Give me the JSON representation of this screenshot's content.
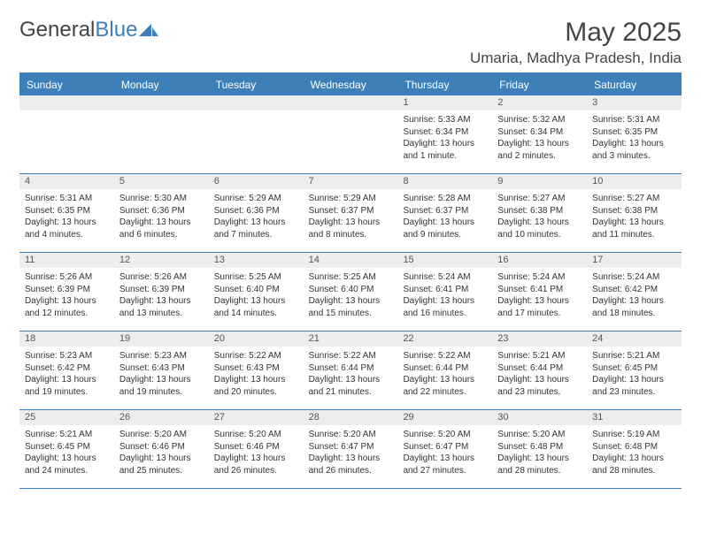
{
  "brand": {
    "part1": "General",
    "part2": "Blue"
  },
  "title": "May 2025",
  "location": "Umaria, Madhya Pradesh, India",
  "colors": {
    "accent": "#3d7fb8",
    "header_text": "#ffffff",
    "daynum_bg": "#eceded",
    "body_text": "#333333",
    "border": "#3d7fb8"
  },
  "day_headers": [
    "Sunday",
    "Monday",
    "Tuesday",
    "Wednesday",
    "Thursday",
    "Friday",
    "Saturday"
  ],
  "labels": {
    "sunrise": "Sunrise:",
    "sunset": "Sunset:",
    "daylight": "Daylight:"
  },
  "weeks": [
    [
      null,
      null,
      null,
      null,
      {
        "n": "1",
        "sr": "5:33 AM",
        "ss": "6:34 PM",
        "dl": "13 hours and 1 minute."
      },
      {
        "n": "2",
        "sr": "5:32 AM",
        "ss": "6:34 PM",
        "dl": "13 hours and 2 minutes."
      },
      {
        "n": "3",
        "sr": "5:31 AM",
        "ss": "6:35 PM",
        "dl": "13 hours and 3 minutes."
      }
    ],
    [
      {
        "n": "4",
        "sr": "5:31 AM",
        "ss": "6:35 PM",
        "dl": "13 hours and 4 minutes."
      },
      {
        "n": "5",
        "sr": "5:30 AM",
        "ss": "6:36 PM",
        "dl": "13 hours and 6 minutes."
      },
      {
        "n": "6",
        "sr": "5:29 AM",
        "ss": "6:36 PM",
        "dl": "13 hours and 7 minutes."
      },
      {
        "n": "7",
        "sr": "5:29 AM",
        "ss": "6:37 PM",
        "dl": "13 hours and 8 minutes."
      },
      {
        "n": "8",
        "sr": "5:28 AM",
        "ss": "6:37 PM",
        "dl": "13 hours and 9 minutes."
      },
      {
        "n": "9",
        "sr": "5:27 AM",
        "ss": "6:38 PM",
        "dl": "13 hours and 10 minutes."
      },
      {
        "n": "10",
        "sr": "5:27 AM",
        "ss": "6:38 PM",
        "dl": "13 hours and 11 minutes."
      }
    ],
    [
      {
        "n": "11",
        "sr": "5:26 AM",
        "ss": "6:39 PM",
        "dl": "13 hours and 12 minutes."
      },
      {
        "n": "12",
        "sr": "5:26 AM",
        "ss": "6:39 PM",
        "dl": "13 hours and 13 minutes."
      },
      {
        "n": "13",
        "sr": "5:25 AM",
        "ss": "6:40 PM",
        "dl": "13 hours and 14 minutes."
      },
      {
        "n": "14",
        "sr": "5:25 AM",
        "ss": "6:40 PM",
        "dl": "13 hours and 15 minutes."
      },
      {
        "n": "15",
        "sr": "5:24 AM",
        "ss": "6:41 PM",
        "dl": "13 hours and 16 minutes."
      },
      {
        "n": "16",
        "sr": "5:24 AM",
        "ss": "6:41 PM",
        "dl": "13 hours and 17 minutes."
      },
      {
        "n": "17",
        "sr": "5:24 AM",
        "ss": "6:42 PM",
        "dl": "13 hours and 18 minutes."
      }
    ],
    [
      {
        "n": "18",
        "sr": "5:23 AM",
        "ss": "6:42 PM",
        "dl": "13 hours and 19 minutes."
      },
      {
        "n": "19",
        "sr": "5:23 AM",
        "ss": "6:43 PM",
        "dl": "13 hours and 19 minutes."
      },
      {
        "n": "20",
        "sr": "5:22 AM",
        "ss": "6:43 PM",
        "dl": "13 hours and 20 minutes."
      },
      {
        "n": "21",
        "sr": "5:22 AM",
        "ss": "6:44 PM",
        "dl": "13 hours and 21 minutes."
      },
      {
        "n": "22",
        "sr": "5:22 AM",
        "ss": "6:44 PM",
        "dl": "13 hours and 22 minutes."
      },
      {
        "n": "23",
        "sr": "5:21 AM",
        "ss": "6:44 PM",
        "dl": "13 hours and 23 minutes."
      },
      {
        "n": "24",
        "sr": "5:21 AM",
        "ss": "6:45 PM",
        "dl": "13 hours and 23 minutes."
      }
    ],
    [
      {
        "n": "25",
        "sr": "5:21 AM",
        "ss": "6:45 PM",
        "dl": "13 hours and 24 minutes."
      },
      {
        "n": "26",
        "sr": "5:20 AM",
        "ss": "6:46 PM",
        "dl": "13 hours and 25 minutes."
      },
      {
        "n": "27",
        "sr": "5:20 AM",
        "ss": "6:46 PM",
        "dl": "13 hours and 26 minutes."
      },
      {
        "n": "28",
        "sr": "5:20 AM",
        "ss": "6:47 PM",
        "dl": "13 hours and 26 minutes."
      },
      {
        "n": "29",
        "sr": "5:20 AM",
        "ss": "6:47 PM",
        "dl": "13 hours and 27 minutes."
      },
      {
        "n": "30",
        "sr": "5:20 AM",
        "ss": "6:48 PM",
        "dl": "13 hours and 28 minutes."
      },
      {
        "n": "31",
        "sr": "5:19 AM",
        "ss": "6:48 PM",
        "dl": "13 hours and 28 minutes."
      }
    ]
  ]
}
